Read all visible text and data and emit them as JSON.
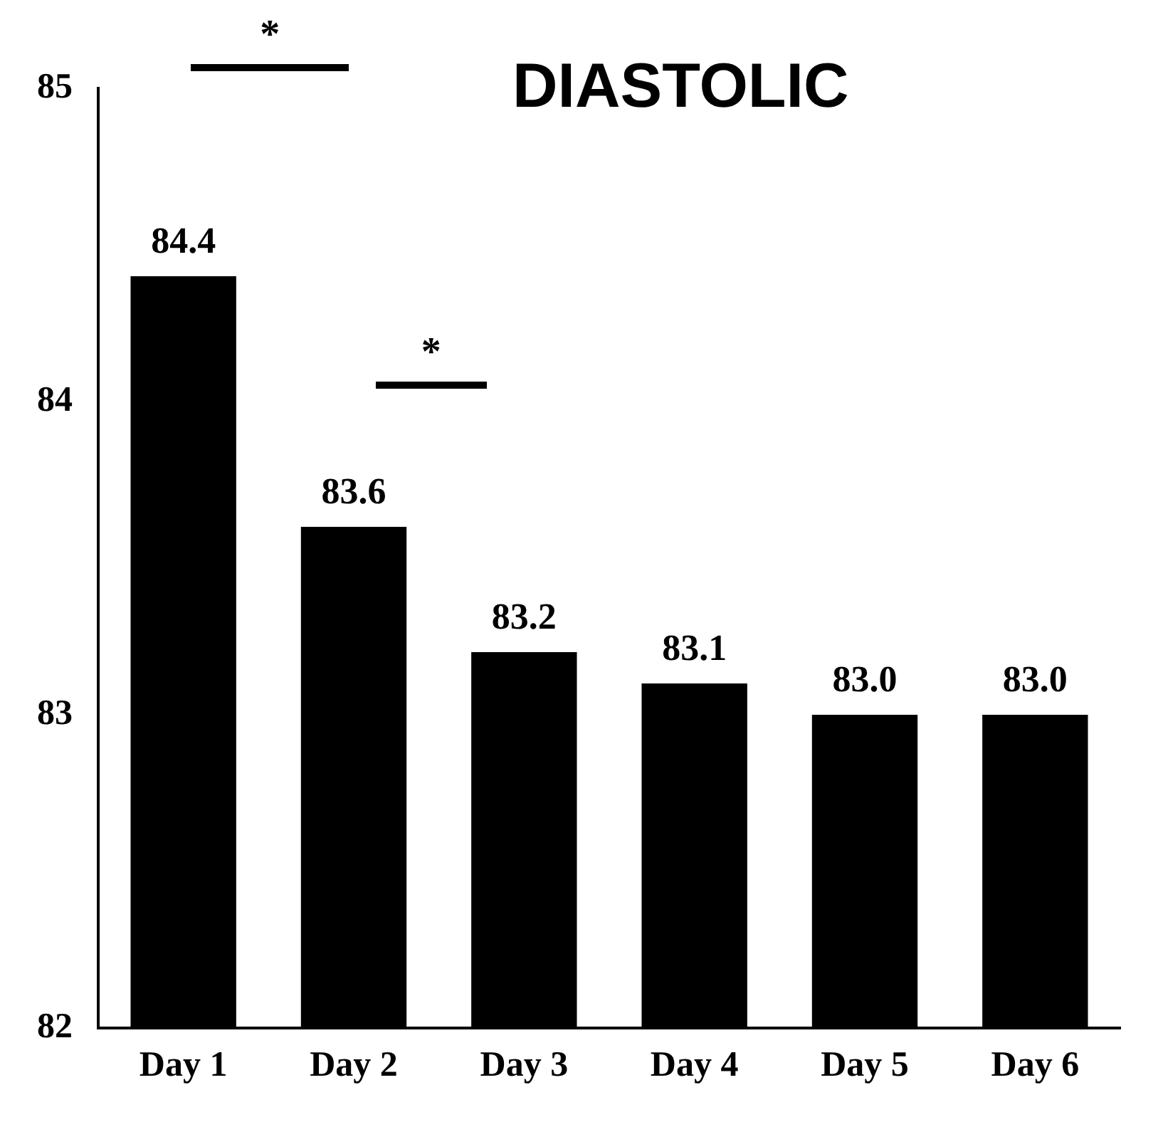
{
  "chart_data": {
    "type": "bar",
    "title": "DIASTOLIC",
    "categories": [
      "Day 1",
      "Day 2",
      "Day 3",
      "Day 4",
      "Day 5",
      "Day 6"
    ],
    "values": [
      84.4,
      83.6,
      83.2,
      83.1,
      83.0,
      83.0
    ],
    "value_labels": [
      "84.4",
      "83.6",
      "83.2",
      "83.1",
      "83.0",
      "83.0"
    ],
    "color": "#000000",
    "ylim": [
      82,
      85
    ],
    "yticks": [
      82,
      83,
      84,
      85
    ],
    "grid": false,
    "legend": false,
    "annotations": [
      "*",
      "*"
    ]
  }
}
